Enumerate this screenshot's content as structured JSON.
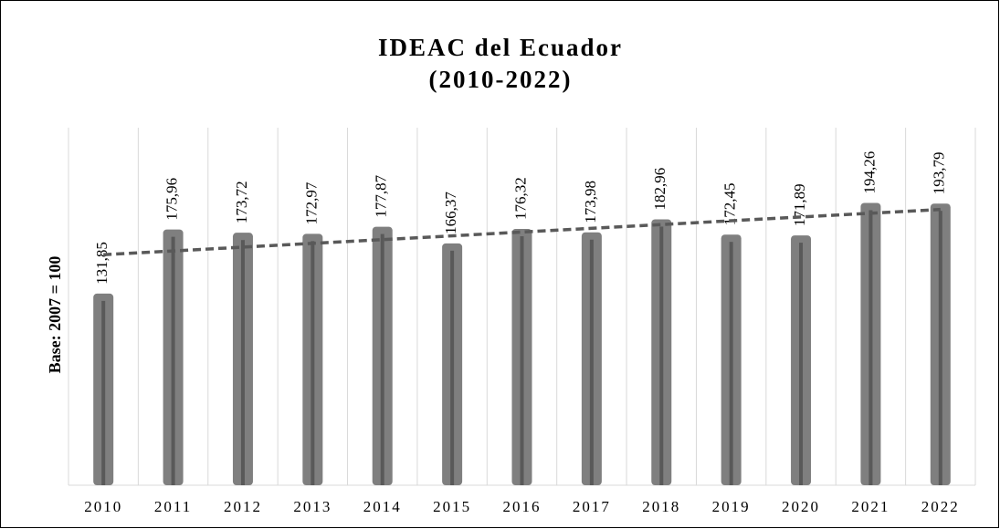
{
  "chart_data": {
    "type": "bar",
    "title": "IDEAC del Ecuador",
    "subtitle": "(2010-2022)",
    "y_label": "Base: 2007 = 100",
    "categories": [
      "2010",
      "2011",
      "2012",
      "2013",
      "2014",
      "2015",
      "2016",
      "2017",
      "2018",
      "2019",
      "2020",
      "2021",
      "2022"
    ],
    "values": [
      131.85,
      175.96,
      173.72,
      172.97,
      177.87,
      166.37,
      176.32,
      173.98,
      182.96,
      172.45,
      171.89,
      194.26,
      193.79
    ],
    "value_labels": [
      "131,85",
      "175,96",
      "173,72",
      "172,97",
      "177,87",
      "166,37",
      "176,32",
      "173,98",
      "182,96",
      "172,45",
      "171,89",
      "194,26",
      "193,79"
    ],
    "color": "#7f7f7f",
    "ylim": [
      0,
      246
    ],
    "trendline": true,
    "trendline_color": "#595959",
    "grid": true
  }
}
